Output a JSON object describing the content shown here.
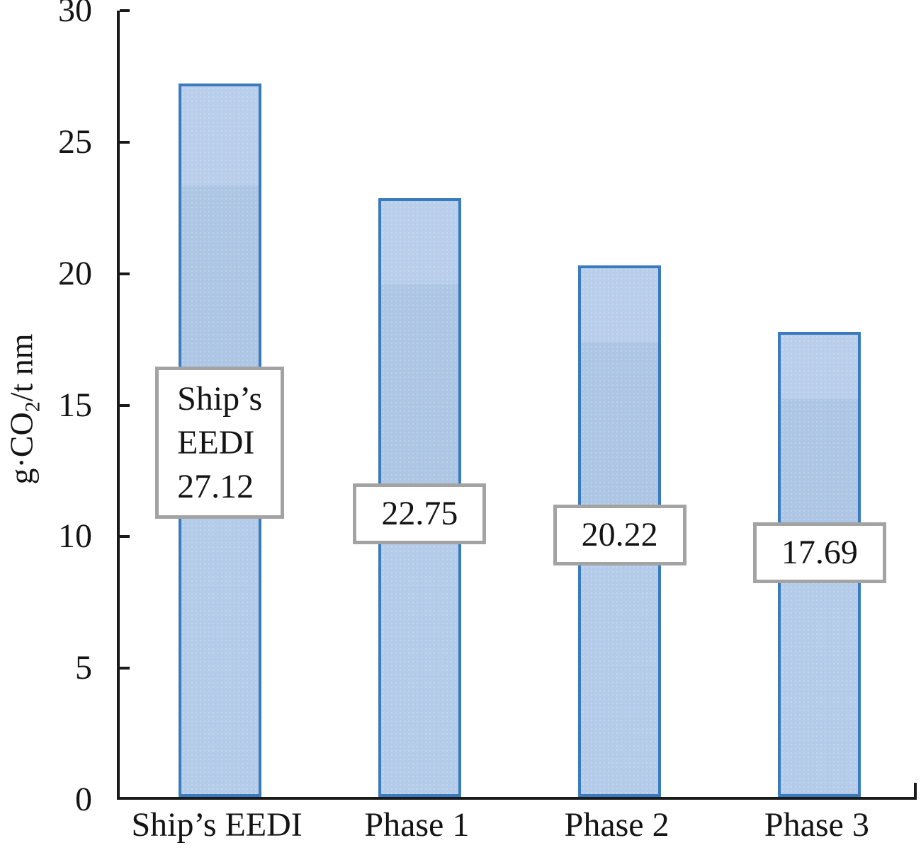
{
  "chart_data": {
    "type": "bar",
    "title": "",
    "categories": [
      "Ship’s EEDI",
      "Phase 1",
      "Phase 2",
      "Phase 3"
    ],
    "values": [
      27.12,
      22.75,
      20.22,
      17.69
    ],
    "bar_label_lines": [
      [
        "Ship’s",
        "EEDI",
        "27.12"
      ],
      [
        "22.75"
      ],
      [
        "20.22"
      ],
      [
        "17.69"
      ]
    ],
    "label_center_values": [
      13.57,
      10.87,
      10.05,
      9.4
    ],
    "xlabel": "",
    "ylabel": "g·CO2/t nm",
    "ylabel_parts": {
      "prefix": "g·CO",
      "sub": "2",
      "suffix": "/t nm"
    },
    "ylim": [
      0,
      30
    ],
    "yticks": [
      0,
      5,
      10,
      15,
      20,
      25,
      30
    ],
    "grid": "off",
    "legend": "none",
    "colors": {
      "bar_fill": "#b0c9e8",
      "bar_border": "#3a7abf",
      "axis": "#1a1a1a",
      "label_box_bg": "#ffffff",
      "label_box_border": "#a3a3a3",
      "text": "#141414",
      "background": "#ffffff"
    }
  }
}
